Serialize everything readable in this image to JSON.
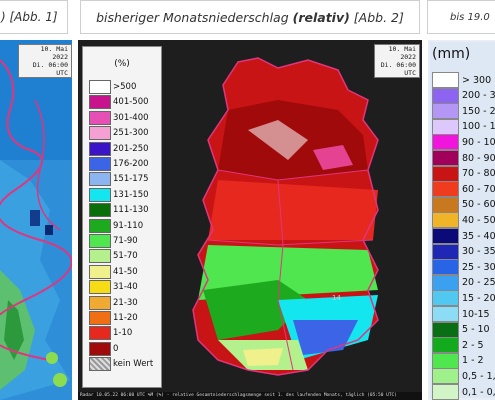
{
  "tabs": {
    "left": {
      "text": ") [Abb. 1]"
    },
    "middle": {
      "prefix": "bisheriger Monatsniederschlag ",
      "bold": "(relativ)",
      "suffix": " [Abb. 2]"
    },
    "right": {
      "text": "bis 19.0"
    }
  },
  "panel_left": {
    "date_line1": "10. Mai 2022",
    "date_line2": "Di. 06:00 UTC",
    "colors": {
      "base": "#2e8fd8",
      "border": "#e0357f"
    }
  },
  "panel_middle": {
    "date_line1": "10. Mai 2022",
    "date_line2": "Di. 06:00 UTC",
    "legend_title": "(%)",
    "legend": [
      {
        "label": ">500",
        "color": "#ffffff"
      },
      {
        "label": "401-500",
        "color": "#c8148c"
      },
      {
        "label": "301-400",
        "color": "#e650b4"
      },
      {
        "label": "251-300",
        "color": "#f5a0d2"
      },
      {
        "label": "201-250",
        "color": "#3c14c8"
      },
      {
        "label": "176-200",
        "color": "#3c64e6"
      },
      {
        "label": "151-175",
        "color": "#8cb4f0"
      },
      {
        "label": "131-150",
        "color": "#14e6f0"
      },
      {
        "label": "111-130",
        "color": "#0a6e0a"
      },
      {
        "label": "91-110",
        "color": "#1eaa1e"
      },
      {
        "label": "71-90",
        "color": "#50e650"
      },
      {
        "label": "51-70",
        "color": "#b4f08c"
      },
      {
        "label": "41-50",
        "color": "#f0f08c"
      },
      {
        "label": "31-40",
        "color": "#f5dc14"
      },
      {
        "label": "21-30",
        "color": "#f0aa32"
      },
      {
        "label": "11-20",
        "color": "#f06e14"
      },
      {
        "label": "1-10",
        "color": "#e6281e"
      },
      {
        "label": "0",
        "color": "#a00a0a"
      },
      {
        "label": "kein Wert",
        "color": "#aaaaaa"
      }
    ],
    "map_label": "14",
    "bottom_text": "Radar  10.05.22 06:00 UTC      %M (%) - relative Gesamtniederschlagsmenge seit 1. des laufenden Monats, täglich (05:50 UTC)"
  },
  "panel_right": {
    "legend_title": "(mm)",
    "legend": [
      {
        "label": "> 300",
        "color": "#ffffff"
      },
      {
        "label": "200 - 3",
        "color": "#8c64f0"
      },
      {
        "label": "150 - 2",
        "color": "#b496f5"
      },
      {
        "label": "100 - 1",
        "color": "#dcc8fa"
      },
      {
        "label": "90 - 10",
        "color": "#f014dc"
      },
      {
        "label": "80 - 90",
        "color": "#a0005a"
      },
      {
        "label": "70 - 80",
        "color": "#c81414"
      },
      {
        "label": "60 - 70",
        "color": "#f03c1e"
      },
      {
        "label": "50 - 60",
        "color": "#c8781e"
      },
      {
        "label": "40 - 50",
        "color": "#f0b428"
      },
      {
        "label": "35 - 40",
        "color": "#0a0a78"
      },
      {
        "label": "30 - 35",
        "color": "#1e28b4"
      },
      {
        "label": "25 - 30",
        "color": "#2864e6"
      },
      {
        "label": "20 - 25",
        "color": "#3ca0f0"
      },
      {
        "label": "15 - 20",
        "color": "#50c8f0"
      },
      {
        "label": "10-15",
        "color": "#8cdcf5"
      },
      {
        "label": "5 - 10",
        "color": "#0a6e14"
      },
      {
        "label": "2 - 5",
        "color": "#14aa1e"
      },
      {
        "label": "1 - 2",
        "color": "#50e650"
      },
      {
        "label": "0,5 - 1,0",
        "color": "#a0f08c"
      },
      {
        "label": "0,1 - 0,",
        "color": "#d2f5c8"
      }
    ]
  }
}
